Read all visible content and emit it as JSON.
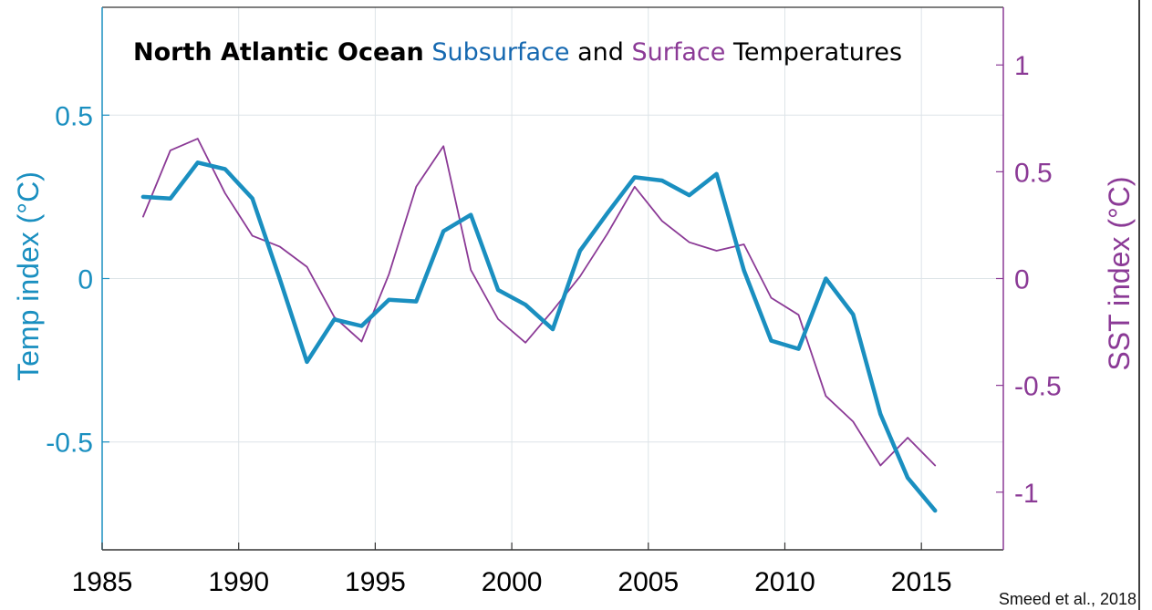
{
  "colors": {
    "subsurface": "#1a8fc0",
    "surface": "#8b3a96",
    "title_black": "#000000",
    "title_blue": "#1568b0",
    "title_purple": "#8b3a96",
    "grid": "#dde4e8",
    "frame": "#333333"
  },
  "chart_data": {
    "type": "line",
    "title_parts": [
      {
        "text": "North Atlantic Ocean",
        "color_key": "title_black",
        "bold": true
      },
      {
        "text": "Subsurface",
        "color_key": "title_blue",
        "bold": false
      },
      {
        "text": "and",
        "color_key": "title_black",
        "bold": false
      },
      {
        "text": "Surface",
        "color_key": "title_purple",
        "bold": false
      },
      {
        "text": "Temperatures",
        "color_key": "title_black",
        "bold": false
      }
    ],
    "xlabel": "",
    "ylabel_left": "Temp index (°C)",
    "ylabel_right": "SST index (°C)",
    "xlim": [
      1985,
      2018
    ],
    "ylim_left": [
      -0.83,
      0.83
    ],
    "ylim_right": [
      -1.27,
      1.27
    ],
    "x_ticks": [
      1985,
      1990,
      1995,
      2000,
      2005,
      2010,
      2015
    ],
    "y_ticks_left": [
      {
        "value": 0.5,
        "label": "0.5"
      },
      {
        "value": 0,
        "label": "0"
      },
      {
        "value": -0.5,
        "label": "-0.5"
      }
    ],
    "y_ticks_right": [
      {
        "value": 1,
        "label": "1"
      },
      {
        "value": 0.5,
        "label": "0.5"
      },
      {
        "value": 0,
        "label": "0"
      },
      {
        "value": -0.5,
        "label": "-0.5"
      },
      {
        "value": -1,
        "label": "-1"
      }
    ],
    "grid": true,
    "series": [
      {
        "name": "Subsurface",
        "axis": "left",
        "color_key": "subsurface",
        "x": [
          1986.5,
          1987.5,
          1988.5,
          1989.5,
          1990.5,
          1991.5,
          1992.5,
          1993.5,
          1994.5,
          1995.5,
          1996.5,
          1997.5,
          1998.5,
          1999.5,
          2000.5,
          2001.5,
          2002.5,
          2003.5,
          2004.5,
          2005.5,
          2006.5,
          2007.5,
          2008.5,
          2009.5,
          2010.5,
          2011.5,
          2012.5,
          2013.5,
          2014.5,
          2015.5
        ],
        "y": [
          0.25,
          0.245,
          0.355,
          0.335,
          0.245,
          0.0,
          -0.255,
          -0.125,
          -0.145,
          -0.065,
          -0.07,
          0.145,
          0.195,
          -0.035,
          -0.08,
          -0.155,
          0.085,
          0.2,
          0.31,
          0.3,
          0.255,
          0.32,
          0.025,
          -0.19,
          -0.215,
          0.0,
          -0.11,
          -0.415,
          -0.61,
          -0.71
        ]
      },
      {
        "name": "Surface",
        "axis": "right",
        "color_key": "surface",
        "x": [
          1986.5,
          1987.5,
          1988.5,
          1989.5,
          1990.5,
          1991.5,
          1992.5,
          1993.5,
          1994.5,
          1995.5,
          1996.5,
          1997.5,
          1998.5,
          1999.5,
          2000.5,
          2001.5,
          2002.5,
          2003.5,
          2004.5,
          2005.5,
          2006.5,
          2007.5,
          2008.5,
          2009.5,
          2010.5,
          2011.5,
          2012.5,
          2013.5,
          2014.5,
          2015.5
        ],
        "y": [
          0.29,
          0.6,
          0.655,
          0.4,
          0.2,
          0.15,
          0.055,
          -0.18,
          -0.295,
          0.02,
          0.43,
          0.62,
          0.04,
          -0.19,
          -0.3,
          -0.15,
          0.01,
          0.21,
          0.43,
          0.27,
          0.17,
          0.13,
          0.16,
          -0.09,
          -0.17,
          -0.55,
          -0.67,
          -0.875,
          -0.745,
          -0.875
        ]
      }
    ]
  },
  "credit": "Smeed et al., 2018"
}
